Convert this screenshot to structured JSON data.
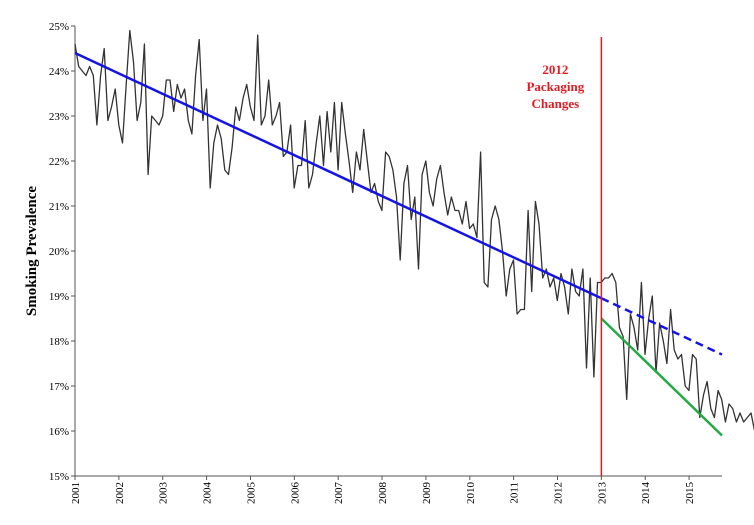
{
  "chart_data": {
    "type": "line",
    "title": "",
    "xlabel": "",
    "ylabel": "Smoking Prevalence",
    "ylim": [
      15,
      25
    ],
    "xlim": [
      2001.0,
      2015.75
    ],
    "y_ticks": [
      15,
      16,
      17,
      18,
      19,
      20,
      21,
      22,
      23,
      24,
      25
    ],
    "y_tick_labels": [
      "15%",
      "16%",
      "17%",
      "18%",
      "19%",
      "20%",
      "21%",
      "22%",
      "23%",
      "24%",
      "25%"
    ],
    "x_ticks": [
      2001,
      2002,
      2003,
      2004,
      2005,
      2006,
      2007,
      2008,
      2009,
      2010,
      2011,
      2012,
      2013,
      2014,
      2015
    ],
    "x_tick_labels": [
      "2001",
      "2002",
      "2003",
      "2004",
      "2005",
      "2006",
      "2007",
      "2008",
      "2009",
      "2010",
      "2011",
      "2012",
      "2013",
      "2014",
      "2015"
    ],
    "grid": false,
    "annotation": {
      "lines": [
        "2012",
        "Packaging",
        "Changes"
      ],
      "x": 2013.0,
      "color": "#e31b23"
    },
    "series": [
      {
        "role": "observed",
        "color": "#333333",
        "x_start": 2001.0,
        "x_step": 0.0833,
        "values": [
          24.6,
          24.1,
          24.0,
          23.9,
          24.1,
          23.9,
          22.8,
          23.9,
          24.5,
          22.9,
          23.2,
          23.6,
          22.8,
          22.4,
          23.7,
          24.9,
          24.2,
          22.9,
          23.3,
          24.6,
          21.7,
          23.0,
          22.9,
          22.8,
          23.0,
          23.8,
          23.8,
          23.1,
          23.7,
          23.4,
          23.6,
          22.9,
          22.6,
          23.9,
          24.7,
          22.9,
          23.6,
          21.4,
          22.4,
          22.8,
          22.5,
          21.8,
          21.7,
          22.3,
          23.2,
          22.9,
          23.4,
          23.7,
          23.2,
          22.9,
          24.8,
          22.8,
          23.0,
          23.8,
          22.8,
          23.0,
          23.3,
          22.1,
          22.2,
          22.8,
          21.4,
          21.9,
          21.9,
          22.9,
          21.4,
          21.7,
          22.4,
          23.0,
          21.9,
          23.1,
          22.2,
          23.3,
          21.8,
          23.3,
          22.6,
          22.0,
          21.3,
          22.2,
          21.8,
          22.7,
          22.0,
          21.3,
          21.5,
          21.1,
          20.9,
          22.2,
          22.1,
          21.8,
          21.2,
          19.8,
          21.5,
          21.9,
          20.7,
          21.2,
          19.6,
          21.7,
          22.0,
          21.3,
          21.0,
          21.6,
          21.9,
          21.3,
          20.8,
          21.2,
          20.9,
          20.9,
          20.6,
          21.1,
          20.5,
          20.6,
          20.3,
          22.2,
          19.3,
          19.2,
          20.7,
          21.0,
          20.7,
          20.0,
          19.0,
          19.6,
          19.8,
          18.6,
          18.7,
          18.7,
          20.9,
          19.1,
          21.1,
          20.6,
          19.4,
          19.6,
          19.2,
          19.4,
          18.9,
          19.5,
          19.2,
          18.6,
          19.6,
          19.1,
          19.0,
          19.6,
          17.4,
          19.4,
          17.2,
          19.3,
          19.3,
          19.4,
          19.4,
          19.5,
          19.3,
          18.3,
          18.1,
          16.7,
          18.6,
          18.3,
          17.8,
          19.3,
          17.7,
          18.5,
          19.0,
          17.3,
          18.4,
          18.0,
          17.5,
          18.7,
          17.8,
          17.6,
          17.7,
          17.0,
          16.9,
          17.7,
          17.6,
          16.3,
          16.8,
          17.1,
          16.5,
          16.3,
          16.9,
          16.7,
          16.2,
          16.6,
          16.5,
          16.2,
          16.4,
          16.2,
          16.3,
          16.4,
          16.0,
          15.5,
          16.6,
          16.0,
          16.2
        ]
      },
      {
        "role": "pre-trend",
        "color": "#1414e6",
        "x": [
          2001.0,
          2013.0
        ],
        "values": [
          24.4,
          18.95
        ]
      },
      {
        "role": "projected-trend",
        "color": "#1414e6",
        "style": "dashed",
        "x": [
          2013.0,
          2015.75
        ],
        "values": [
          18.95,
          17.7
        ]
      },
      {
        "role": "post-trend",
        "color": "#22aa44",
        "x": [
          2013.0,
          2015.75
        ],
        "values": [
          18.5,
          15.9
        ]
      }
    ]
  }
}
